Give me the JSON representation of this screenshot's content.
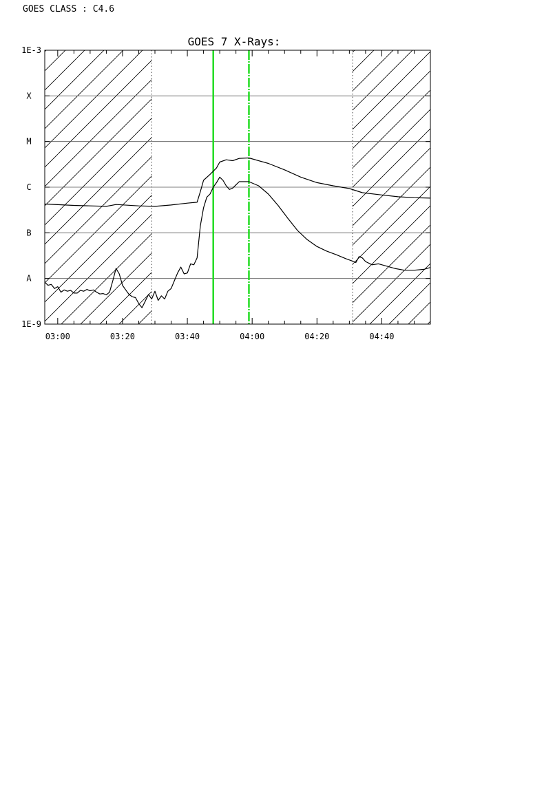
{
  "header": {
    "goes_class_label": "GOES CLASS : C4.6"
  },
  "chart_data": {
    "type": "line",
    "title": "GOES 7 X-Rays:",
    "xlabel": "",
    "ylabel": "",
    "x_range_minutes": [
      "02:56",
      "04:55"
    ],
    "x_ticks": [
      "03:00",
      "03:20",
      "03:40",
      "04:00",
      "04:20",
      "04:40"
    ],
    "y_scale": "log",
    "y_range": [
      "1E-9",
      "1E-3"
    ],
    "y_tick_labels": [
      "1E-9",
      "A",
      "B",
      "C",
      "M",
      "X",
      "1E-3"
    ],
    "grid": "horizontal",
    "hatched_ranges": [
      [
        "02:56",
        "03:29"
      ],
      [
        "04:31",
        "04:55"
      ]
    ],
    "dotted_lines": [
      "03:29",
      "04:31"
    ],
    "green_lines": [
      {
        "time": "03:48",
        "style": "solid"
      },
      {
        "time": "03:59",
        "style": "dashed"
      }
    ],
    "series": [
      {
        "points": [
          [
            "02:56",
            -6.37
          ],
          [
            "03:05",
            -6.4
          ],
          [
            "03:15",
            -6.42
          ],
          [
            "03:18",
            -6.38
          ],
          [
            "03:25",
            -6.41
          ],
          [
            "03:30",
            -6.42
          ],
          [
            "03:35",
            -6.39
          ],
          [
            "03:40",
            -6.35
          ],
          [
            "03:43",
            -6.33
          ],
          [
            "03:44",
            -6.1
          ],
          [
            "03:45",
            -5.85
          ],
          [
            "03:47",
            -5.72
          ],
          [
            "03:49",
            -5.58
          ],
          [
            "03:50",
            -5.45
          ],
          [
            "03:52",
            -5.4
          ],
          [
            "03:54",
            -5.42
          ],
          [
            "03:56",
            -5.37
          ],
          [
            "03:59",
            -5.36
          ],
          [
            "04:05",
            -5.48
          ],
          [
            "04:10",
            -5.62
          ],
          [
            "04:15",
            -5.78
          ],
          [
            "04:20",
            -5.9
          ],
          [
            "04:25",
            -5.97
          ],
          [
            "04:30",
            -6.03
          ],
          [
            "04:34",
            -6.12
          ],
          [
            "04:40",
            -6.17
          ],
          [
            "04:45",
            -6.21
          ],
          [
            "04:50",
            -6.23
          ],
          [
            "04:55",
            -6.24
          ]
        ]
      },
      {
        "points": [
          [
            "02:56",
            -8.08
          ],
          [
            "02:57",
            -8.15
          ],
          [
            "02:58",
            -8.13
          ],
          [
            "02:59",
            -8.22
          ],
          [
            "03:00",
            -8.18
          ],
          [
            "03:01",
            -8.3
          ],
          [
            "03:02",
            -8.25
          ],
          [
            "03:03",
            -8.28
          ],
          [
            "03:04",
            -8.26
          ],
          [
            "03:05",
            -8.32
          ],
          [
            "03:06",
            -8.32
          ],
          [
            "03:07",
            -8.26
          ],
          [
            "03:08",
            -8.28
          ],
          [
            "03:09",
            -8.24
          ],
          [
            "03:10",
            -8.27
          ],
          [
            "03:11",
            -8.25
          ],
          [
            "03:12",
            -8.3
          ],
          [
            "03:13",
            -8.34
          ],
          [
            "03:14",
            -8.33
          ],
          [
            "03:15",
            -8.36
          ],
          [
            "03:16",
            -8.3
          ],
          [
            "03:17",
            -8.05
          ],
          [
            "03:18",
            -7.78
          ],
          [
            "03:19",
            -7.9
          ],
          [
            "03:20",
            -8.15
          ],
          [
            "03:21",
            -8.25
          ],
          [
            "03:22",
            -8.35
          ],
          [
            "03:23",
            -8.4
          ],
          [
            "03:24",
            -8.42
          ],
          [
            "03:25",
            -8.55
          ],
          [
            "03:26",
            -8.64
          ],
          [
            "03:27",
            -8.5
          ],
          [
            "03:28",
            -8.35
          ],
          [
            "03:29",
            -8.45
          ],
          [
            "03:30",
            -8.28
          ],
          [
            "03:31",
            -8.48
          ],
          [
            "03:32",
            -8.38
          ],
          [
            "03:33",
            -8.45
          ],
          [
            "03:34",
            -8.28
          ],
          [
            "03:35",
            -8.22
          ],
          [
            "03:36",
            -8.05
          ],
          [
            "03:37",
            -7.88
          ],
          [
            "03:38",
            -7.75
          ],
          [
            "03:39",
            -7.9
          ],
          [
            "03:40",
            -7.88
          ],
          [
            "03:41",
            -7.68
          ],
          [
            "03:42",
            -7.7
          ],
          [
            "03:43",
            -7.55
          ],
          [
            "03:44",
            -6.85
          ],
          [
            "03:45",
            -6.45
          ],
          [
            "03:46",
            -6.22
          ],
          [
            "03:47",
            -6.15
          ],
          [
            "03:48",
            -6.0
          ],
          [
            "03:49",
            -5.9
          ],
          [
            "03:50",
            -5.78
          ],
          [
            "03:51",
            -5.85
          ],
          [
            "03:52",
            -5.97
          ],
          [
            "03:53",
            -6.05
          ],
          [
            "03:54",
            -6.02
          ],
          [
            "03:55",
            -5.95
          ],
          [
            "03:56",
            -5.88
          ],
          [
            "03:59",
            -5.88
          ],
          [
            "04:02",
            -5.97
          ],
          [
            "04:05",
            -6.15
          ],
          [
            "04:08",
            -6.4
          ],
          [
            "04:11",
            -6.68
          ],
          [
            "04:14",
            -6.95
          ],
          [
            "04:17",
            -7.15
          ],
          [
            "04:20",
            -7.3
          ],
          [
            "04:23",
            -7.4
          ],
          [
            "04:26",
            -7.48
          ],
          [
            "04:29",
            -7.57
          ],
          [
            "04:31",
            -7.62
          ],
          [
            "04:32",
            -7.65
          ],
          [
            "04:33",
            -7.52
          ],
          [
            "04:34",
            -7.55
          ],
          [
            "04:35",
            -7.63
          ],
          [
            "04:37",
            -7.7
          ],
          [
            "04:39",
            -7.68
          ],
          [
            "04:41",
            -7.72
          ],
          [
            "04:44",
            -7.78
          ],
          [
            "04:47",
            -7.82
          ],
          [
            "04:50",
            -7.82
          ],
          [
            "04:53",
            -7.8
          ],
          [
            "04:55",
            -7.76
          ]
        ]
      }
    ]
  }
}
